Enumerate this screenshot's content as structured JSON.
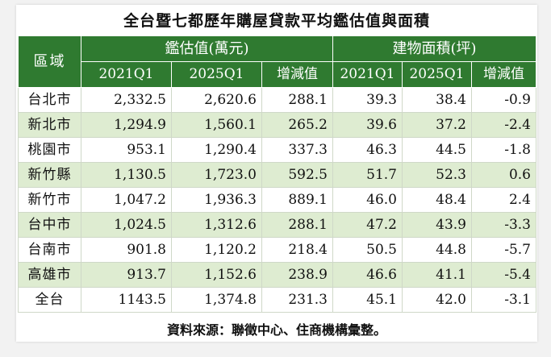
{
  "title": "全台暨七都歷年購屋貸款平均鑑估值與面積",
  "headers": {
    "region": "區域",
    "valuation_group": "鑑估值(萬元)",
    "area_group": "建物面積(坪)",
    "sub": [
      "2021Q1",
      "2025Q1",
      "增減值",
      "2021Q1",
      "2025Q1",
      "增減值"
    ]
  },
  "rows": [
    {
      "region": "台北市",
      "v2021": "2,332.5",
      "v2025": "2,620.6",
      "vdiff": "288.1",
      "a2021": "39.3",
      "a2025": "38.4",
      "adiff": "-0.9"
    },
    {
      "region": "新北市",
      "v2021": "1,294.9",
      "v2025": "1,560.1",
      "vdiff": "265.2",
      "a2021": "39.6",
      "a2025": "37.2",
      "adiff": "-2.4"
    },
    {
      "region": "桃園市",
      "v2021": "953.1",
      "v2025": "1,290.4",
      "vdiff": "337.3",
      "a2021": "46.3",
      "a2025": "44.5",
      "adiff": "-1.8"
    },
    {
      "region": "新竹縣",
      "v2021": "1,130.5",
      "v2025": "1,723.0",
      "vdiff": "592.5",
      "a2021": "51.7",
      "a2025": "52.3",
      "adiff": "0.6"
    },
    {
      "region": "新竹市",
      "v2021": "1,047.2",
      "v2025": "1,936.3",
      "vdiff": "889.1",
      "a2021": "46.0",
      "a2025": "48.4",
      "adiff": "2.4"
    },
    {
      "region": "台中市",
      "v2021": "1,024.5",
      "v2025": "1,312.6",
      "vdiff": "288.1",
      "a2021": "47.2",
      "a2025": "43.9",
      "adiff": "-3.3"
    },
    {
      "region": "台南市",
      "v2021": "901.8",
      "v2025": "1,120.2",
      "vdiff": "218.4",
      "a2021": "50.5",
      "a2025": "44.8",
      "adiff": "-5.7"
    },
    {
      "region": "高雄市",
      "v2021": "913.7",
      "v2025": "1,152.6",
      "vdiff": "238.9",
      "a2021": "46.6",
      "a2025": "41.1",
      "adiff": "-5.4"
    },
    {
      "region": "全台",
      "v2021": "1143.5",
      "v2025": "1,374.8",
      "vdiff": "231.3",
      "a2021": "45.1",
      "a2025": "42.0",
      "adiff": "-3.1"
    }
  ],
  "source": "資料來源：聯徵中心、住商機構彙整。",
  "colors": {
    "header_green": "#2f7a30",
    "alt_row": "#deecd1"
  }
}
